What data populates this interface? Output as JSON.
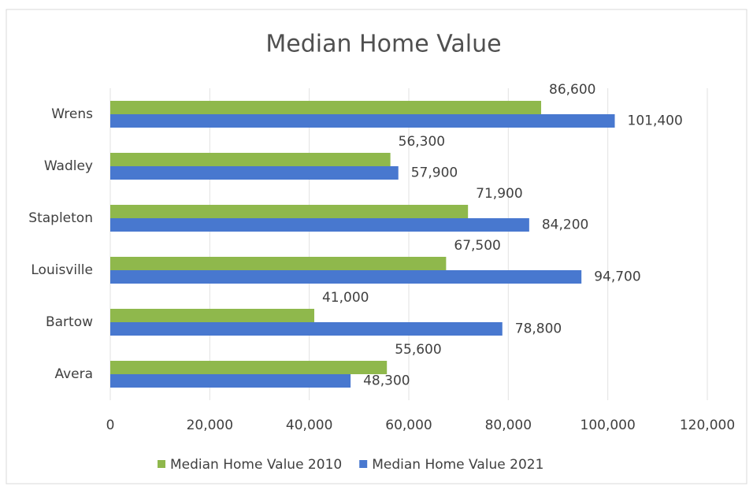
{
  "chart_data": {
    "type": "hbar",
    "title": "Median Home Value",
    "categories": [
      "Wrens",
      "Wadley",
      "Stapleton",
      "Louisville",
      "Bartow",
      "Avera"
    ],
    "series": [
      {
        "name": "Median Home Value 2010",
        "color": "#8fb84c",
        "values": [
          86600,
          56300,
          71900,
          67500,
          41000,
          55600
        ],
        "value_labels": [
          "86,600",
          "56,300",
          "71,900",
          "67,500",
          "41,000",
          "55,600"
        ]
      },
      {
        "name": "Median Home Value 2021",
        "color": "#4878cf",
        "values": [
          101400,
          57900,
          84200,
          94700,
          78800,
          48300
        ],
        "value_labels": [
          "101,400",
          "57,900",
          "84,200",
          "94,700",
          "78,800",
          "48,300"
        ]
      }
    ],
    "xlim": [
      0,
      120000
    ],
    "xticks": [
      0,
      {
        "value": 20000,
        "label": "20,000"
      },
      {
        "value": 40000,
        "label": "40,000"
      },
      {
        "value": 60000,
        "label": "60,000"
      },
      {
        "value": 80000,
        "label": "80,000"
      },
      {
        "value": 100000,
        "label": "100,000"
      },
      {
        "value": 120000,
        "label": "120,000"
      }
    ],
    "grid": true,
    "legend": "bottom"
  }
}
